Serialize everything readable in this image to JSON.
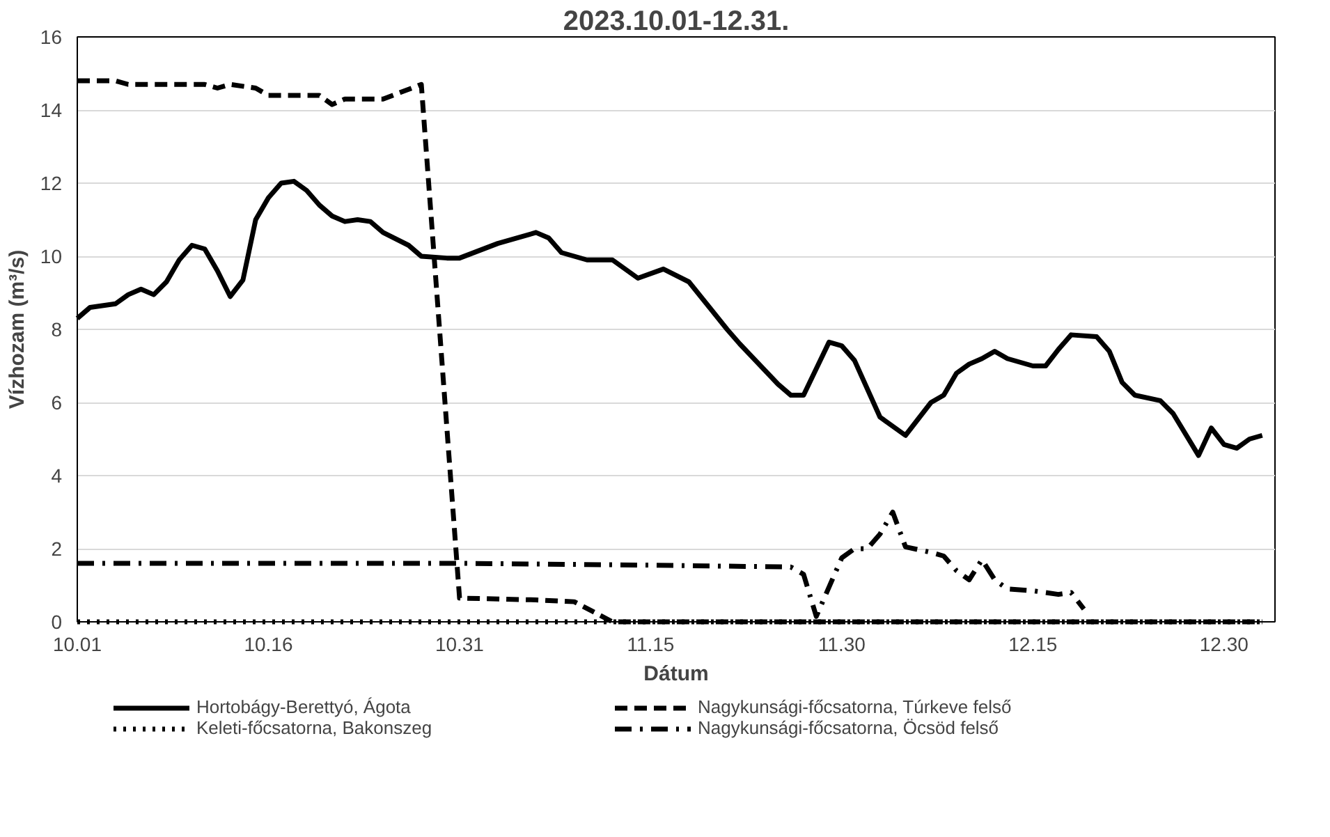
{
  "chart_data": {
    "type": "line",
    "title": "2023.10.01-12.31.",
    "xlabel": "Dátum",
    "ylabel": "Vízhozam (m³/s)",
    "xlim": [
      "2023-10-01",
      "2024-01-03"
    ],
    "xticks": [
      {
        "value": "2023-10-01",
        "label": "10.01"
      },
      {
        "value": "2023-10-16",
        "label": "10.16"
      },
      {
        "value": "2023-10-31",
        "label": "10.31"
      },
      {
        "value": "2023-11-15",
        "label": "11.15"
      },
      {
        "value": "2023-11-30",
        "label": "11.30"
      },
      {
        "value": "2023-12-15",
        "label": "12.15"
      },
      {
        "value": "2023-12-30",
        "label": "12.30"
      }
    ],
    "ylim": [
      0,
      16
    ],
    "yticks": [
      0,
      2,
      4,
      6,
      8,
      10,
      12,
      14,
      16
    ],
    "grid": "y",
    "legend": "bottom",
    "series": [
      {
        "name": "Hortobágy-Berettyó, Ágota",
        "color": "#000000",
        "line_style": "solid",
        "x": [
          "2023-10-01",
          "2023-10-02",
          "2023-10-04",
          "2023-10-05",
          "2023-10-06",
          "2023-10-07",
          "2023-10-08",
          "2023-10-09",
          "2023-10-10",
          "2023-10-11",
          "2023-10-12",
          "2023-10-13",
          "2023-10-14",
          "2023-10-15",
          "2023-10-16",
          "2023-10-17",
          "2023-10-18",
          "2023-10-19",
          "2023-10-20",
          "2023-10-21",
          "2023-10-22",
          "2023-10-23",
          "2023-10-24",
          "2023-10-25",
          "2023-10-27",
          "2023-10-28",
          "2023-10-30",
          "2023-10-31",
          "2023-11-03",
          "2023-11-06",
          "2023-11-07",
          "2023-11-08",
          "2023-11-10",
          "2023-11-12",
          "2023-11-14",
          "2023-11-16",
          "2023-11-18",
          "2023-11-21",
          "2023-11-22",
          "2023-11-25",
          "2023-11-26",
          "2023-11-27",
          "2023-11-29",
          "2023-11-30",
          "2023-12-01",
          "2023-12-03",
          "2023-12-05",
          "2023-12-07",
          "2023-12-08",
          "2023-12-09",
          "2023-12-10",
          "2023-12-11",
          "2023-12-12",
          "2023-12-13",
          "2023-12-15",
          "2023-12-16",
          "2023-12-17",
          "2023-12-18",
          "2023-12-20",
          "2023-12-21",
          "2023-12-22",
          "2023-12-23",
          "2023-12-25",
          "2023-12-26",
          "2023-12-28",
          "2023-12-29",
          "2023-12-30",
          "2023-12-31",
          "2024-01-01",
          "2024-01-02"
        ],
        "values": [
          8.3,
          8.6,
          8.7,
          8.95,
          9.1,
          8.95,
          9.3,
          9.9,
          10.3,
          10.2,
          9.6,
          8.9,
          9.35,
          11.0,
          11.6,
          12.0,
          12.05,
          11.8,
          11.4,
          11.1,
          10.95,
          11.0,
          10.95,
          10.65,
          10.3,
          10.0,
          9.95,
          9.95,
          10.35,
          10.65,
          10.5,
          10.1,
          9.9,
          9.9,
          9.4,
          9.65,
          9.3,
          8.0,
          7.6,
          6.5,
          6.2,
          6.2,
          7.65,
          7.55,
          7.15,
          5.6,
          5.1,
          6.0,
          6.2,
          6.8,
          7.05,
          7.2,
          7.4,
          7.2,
          7.0,
          7.0,
          7.45,
          7.85,
          7.8,
          7.4,
          6.55,
          6.2,
          6.05,
          5.7,
          4.55,
          5.3,
          4.85,
          4.75,
          5.0,
          5.1
        ]
      },
      {
        "name": "Keleti-főcsatorna, Bakonszeg",
        "color": "#000000",
        "line_style": "dotted",
        "x": [
          "2023-10-01",
          "2024-01-02"
        ],
        "values": [
          0,
          0
        ]
      },
      {
        "name": "Nagykunsági-főcsatorna, Túrkeve felső",
        "color": "#000000",
        "line_style": "dashed",
        "x": [
          "2023-10-01",
          "2023-10-04",
          "2023-10-05",
          "2023-10-11",
          "2023-10-12",
          "2023-10-13",
          "2023-10-15",
          "2023-10-16",
          "2023-10-20",
          "2023-10-21",
          "2023-10-22",
          "2023-10-25",
          "2023-10-28",
          "2023-10-31",
          "2023-11-06",
          "2023-11-09",
          "2023-11-12",
          "2024-01-02"
        ],
        "values": [
          14.8,
          14.8,
          14.7,
          14.7,
          14.6,
          14.7,
          14.6,
          14.4,
          14.4,
          14.15,
          14.3,
          14.3,
          14.7,
          0.65,
          0.6,
          0.55,
          0,
          0
        ]
      },
      {
        "name": "Nagykunsági-főcsatorna, Öcsöd felső",
        "color": "#000000",
        "line_style": "dashdot",
        "x": [
          "2023-10-01",
          "2023-10-21",
          "2023-10-31",
          "2023-11-15",
          "2023-11-26",
          "2023-11-27",
          "2023-11-28",
          "2023-11-30",
          "2023-12-01",
          "2023-12-02",
          "2023-12-03",
          "2023-12-04",
          "2023-12-05",
          "2023-12-07",
          "2023-12-08",
          "2023-12-09",
          "2023-12-10",
          "2023-12-11",
          "2023-12-12",
          "2023-12-13",
          "2023-12-15",
          "2023-12-17",
          "2023-12-18",
          "2023-12-19"
        ],
        "values": [
          1.6,
          1.6,
          1.6,
          1.55,
          1.5,
          1.3,
          0.15,
          1.75,
          2.0,
          2.0,
          2.4,
          3.0,
          2.05,
          1.9,
          1.8,
          1.4,
          1.15,
          1.7,
          1.15,
          0.9,
          0.85,
          0.75,
          0.8,
          0.35
        ]
      }
    ]
  }
}
